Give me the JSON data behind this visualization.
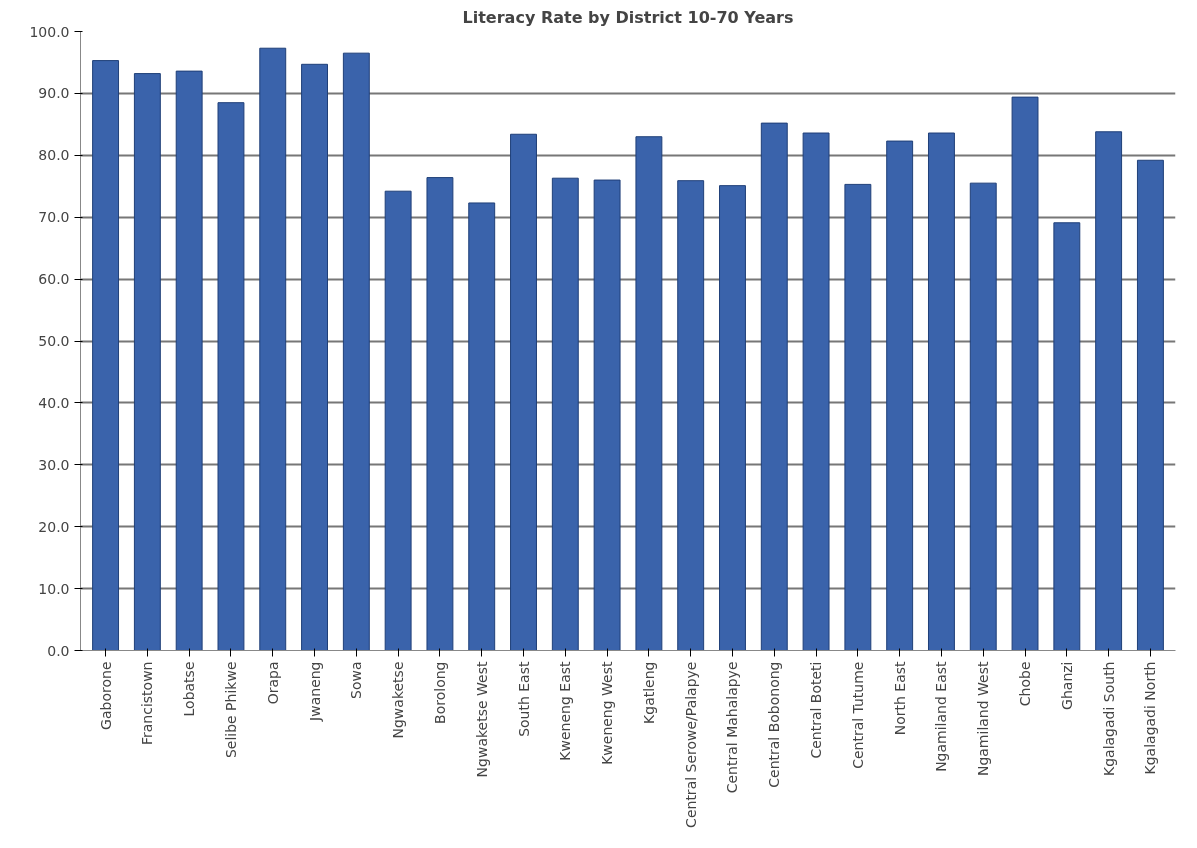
{
  "chart_data": {
    "type": "bar",
    "title": "Literacy Rate by District 10-70 Years",
    "categories": [
      "Gaborone",
      "Francistown",
      "Lobatse",
      "Selibe Phikwe",
      "Orapa",
      "Jwaneng",
      "Sowa",
      "Ngwaketse",
      "Borolong",
      "Ngwaketse West",
      "South East",
      "Kweneng East",
      "Kweneng West",
      "Kgatleng",
      "Central Serowe/Palapye",
      "Central Mahalapye",
      "Central Bobonong",
      "Central Boteti",
      "Central Tutume",
      "North East",
      "Ngamiland East",
      "Ngamiland West",
      "Chobe",
      "Ghanzi",
      "Kgalagadi South",
      "Kgalagadi North"
    ],
    "values": [
      95.3,
      93.2,
      93.6,
      88.5,
      97.3,
      94.7,
      96.5,
      74.2,
      76.4,
      72.3,
      83.4,
      76.3,
      76.0,
      83.0,
      75.9,
      75.1,
      85.2,
      83.6,
      75.3,
      82.3,
      83.6,
      75.5,
      89.4,
      69.1,
      83.8,
      79.2
    ],
    "color": "#3a63ab",
    "ylim": [
      0,
      100
    ],
    "yticks": [
      {
        "value": 0,
        "label": "0.0"
      },
      {
        "value": 10,
        "label": "10.0"
      },
      {
        "value": 20,
        "label": "20.0"
      },
      {
        "value": 30,
        "label": "30.0"
      },
      {
        "value": 40,
        "label": "40.0"
      },
      {
        "value": 50,
        "label": "50.0"
      },
      {
        "value": 60,
        "label": "60.0"
      },
      {
        "value": 70,
        "label": "70.0"
      },
      {
        "value": 80,
        "label": "80.0"
      },
      {
        "value": 90,
        "label": "90.0"
      },
      {
        "value": 100,
        "label": "100.0"
      }
    ],
    "grid": "y"
  }
}
